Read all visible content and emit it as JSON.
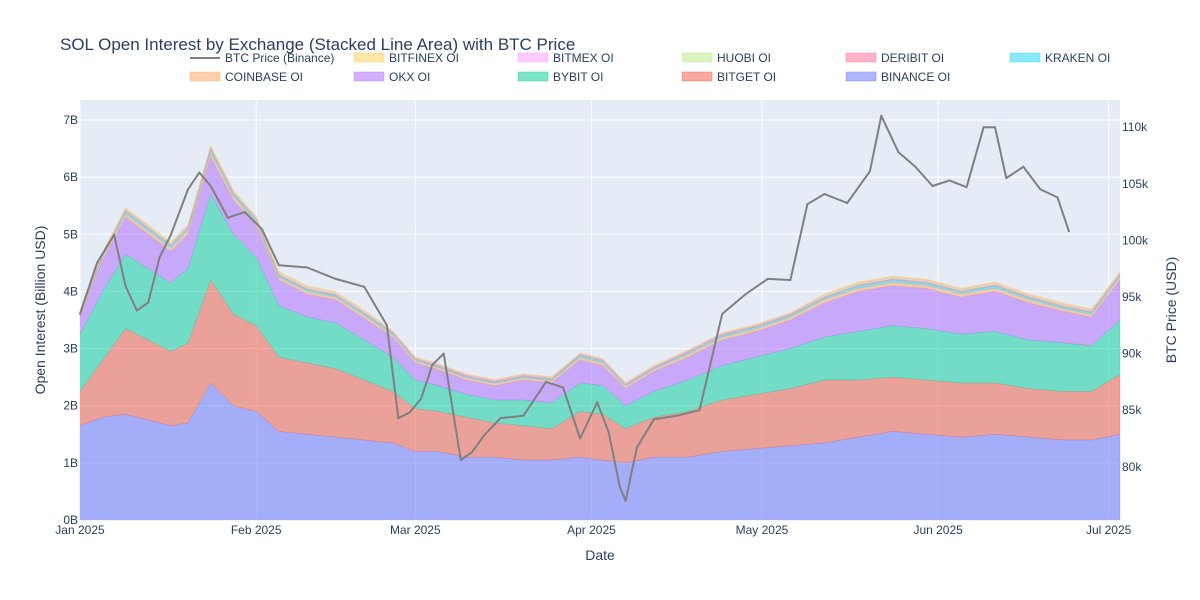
{
  "chart_data": {
    "type": "area",
    "title": "SOL Open Interest by Exchange (Stacked Line Area) with BTC Price",
    "xlabel": "Date",
    "ylabel": "Open Interest (Billion USD)",
    "y2label": "BTC Price (USD)",
    "ylim": [
      0,
      7.35
    ],
    "y2lim": [
      75300,
      112400
    ],
    "xlim": [
      "2025-01-01",
      "2025-07-03"
    ],
    "x_ticks": [
      {
        "date": "2025-01-01",
        "label": "Jan 2025"
      },
      {
        "date": "2025-02-01",
        "label": "Feb 2025"
      },
      {
        "date": "2025-03-01",
        "label": "Mar 2025"
      },
      {
        "date": "2025-04-01",
        "label": "Apr 2025"
      },
      {
        "date": "2025-05-01",
        "label": "May 2025"
      },
      {
        "date": "2025-06-01",
        "label": "Jun 2025"
      },
      {
        "date": "2025-07-01",
        "label": "Jul 2025"
      }
    ],
    "y_ticks": [
      {
        "value": 0,
        "label": "0B"
      },
      {
        "value": 1,
        "label": "1B"
      },
      {
        "value": 2,
        "label": "2B"
      },
      {
        "value": 3,
        "label": "3B"
      },
      {
        "value": 4,
        "label": "4B"
      },
      {
        "value": 5,
        "label": "5B"
      },
      {
        "value": 6,
        "label": "6B"
      },
      {
        "value": 7,
        "label": "7B"
      }
    ],
    "y2_ticks": [
      {
        "value": 80000,
        "label": "80k"
      },
      {
        "value": 85000,
        "label": "85k"
      },
      {
        "value": 90000,
        "label": "90k"
      },
      {
        "value": 95000,
        "label": "95k"
      },
      {
        "value": 100000,
        "label": "100k"
      },
      {
        "value": 105000,
        "label": "105k"
      },
      {
        "value": 110000,
        "label": "110k"
      }
    ],
    "grid": true,
    "legend_position": "top",
    "stack_order": [
      "BINANCE OI",
      "BITGET OI",
      "BYBIT OI",
      "OKX OI",
      "COINBASE OI",
      "KRAKEN OI",
      "DERIBIT OI",
      "HUOBI OI",
      "BITMEX OI",
      "BITFINEX OI"
    ],
    "legend_order": [
      "BTC Price (Binance)",
      "BITFINEX OI",
      "BITMEX OI",
      "HUOBI OI",
      "DERIBIT OI",
      "KRAKEN OI",
      "COINBASE OI",
      "OKX OI",
      "BYBIT OI",
      "BITGET OI",
      "BINANCE OI"
    ],
    "x": [
      "2025-01-01",
      "2025-01-05",
      "2025-01-09",
      "2025-01-13",
      "2025-01-17",
      "2025-01-20",
      "2025-01-24",
      "2025-01-28",
      "2025-02-01",
      "2025-02-05",
      "2025-02-10",
      "2025-02-15",
      "2025-02-20",
      "2025-02-25",
      "2025-03-01",
      "2025-03-05",
      "2025-03-10",
      "2025-03-15",
      "2025-03-20",
      "2025-03-25",
      "2025-03-30",
      "2025-04-03",
      "2025-04-07",
      "2025-04-12",
      "2025-04-18",
      "2025-04-24",
      "2025-04-30",
      "2025-05-06",
      "2025-05-12",
      "2025-05-18",
      "2025-05-24",
      "2025-05-30",
      "2025-06-05",
      "2025-06-11",
      "2025-06-17",
      "2025-06-23",
      "2025-06-28",
      "2025-07-03"
    ],
    "series": [
      {
        "name": "BINANCE OI",
        "color": "#636efa",
        "values": [
          1.65,
          1.8,
          1.85,
          1.75,
          1.65,
          1.7,
          2.4,
          2.0,
          1.9,
          1.55,
          1.5,
          1.45,
          1.4,
          1.35,
          1.2,
          1.2,
          1.1,
          1.1,
          1.05,
          1.05,
          1.1,
          1.05,
          1.0,
          1.1,
          1.1,
          1.2,
          1.25,
          1.3,
          1.35,
          1.45,
          1.55,
          1.5,
          1.45,
          1.5,
          1.45,
          1.4,
          1.4,
          1.5
        ]
      },
      {
        "name": "BITGET OI",
        "color": "#ef553b",
        "values": [
          0.6,
          1.0,
          1.5,
          1.4,
          1.3,
          1.4,
          1.8,
          1.6,
          1.5,
          1.3,
          1.25,
          1.2,
          1.05,
          0.9,
          0.75,
          0.7,
          0.7,
          0.6,
          0.6,
          0.55,
          0.8,
          0.8,
          0.6,
          0.7,
          0.8,
          0.9,
          0.95,
          1.0,
          1.1,
          1.0,
          0.95,
          0.95,
          0.95,
          0.9,
          0.85,
          0.85,
          0.85,
          1.05
        ]
      },
      {
        "name": "BYBIT OI",
        "color": "#00cc96",
        "values": [
          1.0,
          1.2,
          1.3,
          1.25,
          1.2,
          1.3,
          1.5,
          1.4,
          1.2,
          0.9,
          0.8,
          0.8,
          0.7,
          0.6,
          0.5,
          0.45,
          0.4,
          0.4,
          0.45,
          0.45,
          0.5,
          0.5,
          0.4,
          0.45,
          0.55,
          0.6,
          0.65,
          0.7,
          0.75,
          0.85,
          0.9,
          0.9,
          0.85,
          0.9,
          0.85,
          0.85,
          0.8,
          0.95
        ]
      },
      {
        "name": "OKX OI",
        "color": "#ab63fa",
        "values": [
          0.3,
          0.55,
          0.65,
          0.6,
          0.55,
          0.6,
          0.65,
          0.6,
          0.55,
          0.45,
          0.4,
          0.4,
          0.38,
          0.35,
          0.3,
          0.28,
          0.25,
          0.25,
          0.35,
          0.35,
          0.4,
          0.35,
          0.3,
          0.35,
          0.4,
          0.45,
          0.45,
          0.5,
          0.6,
          0.7,
          0.7,
          0.7,
          0.65,
          0.7,
          0.65,
          0.55,
          0.5,
          0.7
        ]
      },
      {
        "name": "COINBASE OI",
        "color": "#ffa15a",
        "values": [
          0.04,
          0.05,
          0.06,
          0.06,
          0.06,
          0.07,
          0.08,
          0.07,
          0.06,
          0.05,
          0.05,
          0.05,
          0.05,
          0.04,
          0.04,
          0.04,
          0.04,
          0.04,
          0.04,
          0.04,
          0.05,
          0.05,
          0.04,
          0.04,
          0.05,
          0.05,
          0.05,
          0.05,
          0.06,
          0.06,
          0.06,
          0.06,
          0.06,
          0.06,
          0.06,
          0.05,
          0.05,
          0.06
        ]
      },
      {
        "name": "KRAKEN OI",
        "color": "#19d3f3",
        "values": [
          0.03,
          0.03,
          0.04,
          0.04,
          0.04,
          0.04,
          0.05,
          0.04,
          0.04,
          0.03,
          0.03,
          0.03,
          0.03,
          0.03,
          0.02,
          0.02,
          0.02,
          0.02,
          0.02,
          0.02,
          0.03,
          0.03,
          0.02,
          0.02,
          0.03,
          0.03,
          0.03,
          0.03,
          0.03,
          0.04,
          0.04,
          0.04,
          0.03,
          0.04,
          0.03,
          0.03,
          0.03,
          0.03
        ]
      },
      {
        "name": "DERIBIT OI",
        "color": "#ff6692",
        "values": [
          0.02,
          0.02,
          0.02,
          0.02,
          0.02,
          0.02,
          0.03,
          0.02,
          0.02,
          0.02,
          0.02,
          0.02,
          0.02,
          0.02,
          0.02,
          0.02,
          0.02,
          0.02,
          0.02,
          0.02,
          0.02,
          0.02,
          0.02,
          0.02,
          0.02,
          0.02,
          0.02,
          0.02,
          0.02,
          0.02,
          0.02,
          0.02,
          0.02,
          0.02,
          0.02,
          0.02,
          0.02,
          0.02
        ]
      },
      {
        "name": "HUOBI OI",
        "color": "#b6e880",
        "values": [
          0.02,
          0.02,
          0.02,
          0.02,
          0.02,
          0.02,
          0.02,
          0.02,
          0.02,
          0.02,
          0.02,
          0.02,
          0.02,
          0.01,
          0.01,
          0.01,
          0.01,
          0.01,
          0.01,
          0.01,
          0.01,
          0.01,
          0.01,
          0.01,
          0.01,
          0.01,
          0.01,
          0.01,
          0.02,
          0.02,
          0.02,
          0.02,
          0.02,
          0.02,
          0.02,
          0.02,
          0.02,
          0.02
        ]
      },
      {
        "name": "BITMEX OI",
        "color": "#ff97ff",
        "values": [
          0.01,
          0.01,
          0.01,
          0.01,
          0.01,
          0.01,
          0.01,
          0.01,
          0.01,
          0.01,
          0.01,
          0.01,
          0.01,
          0.01,
          0.01,
          0.01,
          0.01,
          0.01,
          0.01,
          0.01,
          0.01,
          0.01,
          0.01,
          0.01,
          0.01,
          0.01,
          0.01,
          0.01,
          0.01,
          0.01,
          0.01,
          0.01,
          0.01,
          0.01,
          0.01,
          0.01,
          0.01,
          0.01
        ]
      },
      {
        "name": "BITFINEX OI",
        "color": "#fecb52",
        "values": [
          0.01,
          0.02,
          0.02,
          0.02,
          0.02,
          0.02,
          0.02,
          0.02,
          0.02,
          0.02,
          0.02,
          0.02,
          0.02,
          0.01,
          0.01,
          0.01,
          0.01,
          0.01,
          0.01,
          0.01,
          0.01,
          0.01,
          0.01,
          0.01,
          0.01,
          0.01,
          0.01,
          0.01,
          0.02,
          0.02,
          0.02,
          0.02,
          0.02,
          0.02,
          0.02,
          0.02,
          0.02,
          0.02
        ]
      }
    ],
    "btc": {
      "name": "BTC Price (Binance)",
      "color": "#808080",
      "x": [
        "2025-01-01",
        "2025-01-04",
        "2025-01-07",
        "2025-01-09",
        "2025-01-11",
        "2025-01-13",
        "2025-01-15",
        "2025-01-17",
        "2025-01-20",
        "2025-01-22",
        "2025-01-24",
        "2025-01-27",
        "2025-01-30",
        "2025-02-02",
        "2025-02-05",
        "2025-02-10",
        "2025-02-15",
        "2025-02-20",
        "2025-02-24",
        "2025-02-26",
        "2025-02-28",
        "2025-03-02",
        "2025-03-04",
        "2025-03-06",
        "2025-03-09",
        "2025-03-11",
        "2025-03-13",
        "2025-03-16",
        "2025-03-20",
        "2025-03-24",
        "2025-03-27",
        "2025-03-30",
        "2025-04-02",
        "2025-04-04",
        "2025-04-06",
        "2025-04-07",
        "2025-04-09",
        "2025-04-12",
        "2025-04-16",
        "2025-04-20",
        "2025-04-24",
        "2025-04-28",
        "2025-05-02",
        "2025-05-06",
        "2025-05-09",
        "2025-05-12",
        "2025-05-16",
        "2025-05-20",
        "2025-05-22",
        "2025-05-25",
        "2025-05-28",
        "2025-05-31",
        "2025-06-03",
        "2025-06-06",
        "2025-06-09",
        "2025-06-11",
        "2025-06-13",
        "2025-06-16",
        "2025-06-19",
        "2025-06-22",
        "2025-06-24"
      ],
      "values": [
        93500,
        98000,
        100500,
        96000,
        93800,
        94500,
        98500,
        100500,
        104500,
        106000,
        104800,
        102000,
        102500,
        101000,
        97800,
        97600,
        96600,
        95900,
        92500,
        84300,
        84800,
        86000,
        89000,
        90000,
        80600,
        81300,
        82700,
        84300,
        84500,
        87500,
        87000,
        82500,
        85700,
        83100,
        78200,
        77000,
        81700,
        84200,
        84500,
        85000,
        93500,
        95200,
        96600,
        96500,
        103200,
        104100,
        103300,
        106100,
        111000,
        107800,
        106500,
        104800,
        105300,
        104700,
        110000,
        110000,
        105500,
        106500,
        104500,
        103800,
        100800
      ]
    }
  }
}
